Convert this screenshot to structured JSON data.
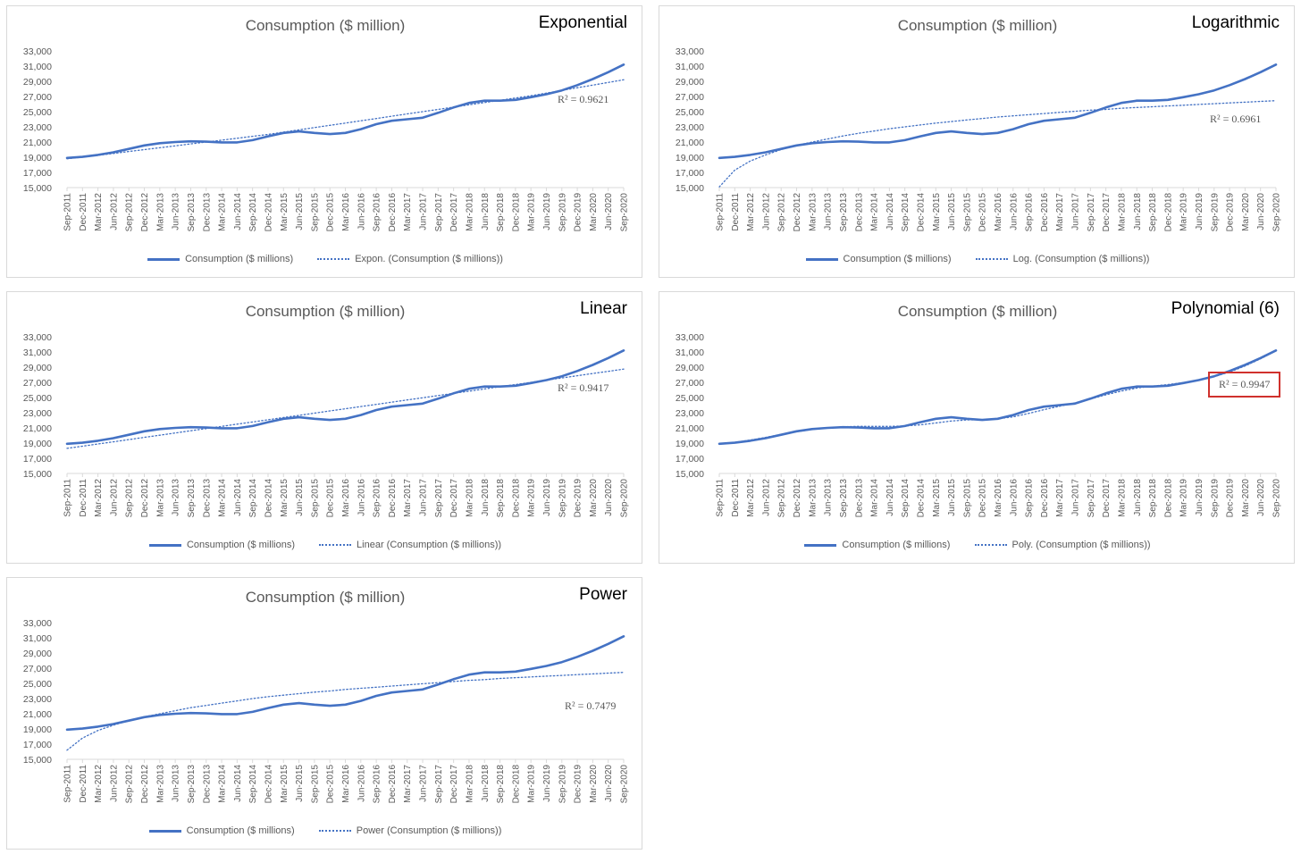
{
  "colors": {
    "series": "#4472c4",
    "text": "#595959",
    "grid": "#d9d9d9",
    "highlight": "#d0312d"
  },
  "chart_data": [
    {
      "type": "line",
      "title": "Consumption  ($ million)",
      "label": "Exponential",
      "r2": "R² = 0.9621",
      "legend": [
        "Consumption  ($ millions)",
        "Expon. (Consumption  ($ millions))"
      ],
      "ylim": [
        15000,
        33000
      ],
      "yticks": [
        "15,000",
        "17,000",
        "19,000",
        "21,000",
        "23,000",
        "25,000",
        "27,000",
        "29,000",
        "31,000",
        "33,000"
      ],
      "categories": [
        "Sep-2011",
        "Dec-2011",
        "Mar-2012",
        "Jun-2012",
        "Sep-2012",
        "Dec-2012",
        "Mar-2013",
        "Jun-2013",
        "Sep-2013",
        "Dec-2013",
        "Mar-2014",
        "Jun-2014",
        "Sep-2014",
        "Dec-2014",
        "Mar-2015",
        "Jun-2015",
        "Sep-2015",
        "Dec-2015",
        "Mar-2016",
        "Jun-2016",
        "Sep-2016",
        "Dec-2016",
        "Mar-2017",
        "Jun-2017",
        "Sep-2017",
        "Dec-2017",
        "Mar-2018",
        "Jun-2018",
        "Sep-2018",
        "Dec-2018",
        "Mar-2019",
        "Jun-2019",
        "Sep-2019",
        "Dec-2019",
        "Mar-2020",
        "Jun-2020",
        "Sep-2020"
      ],
      "series": [
        {
          "name": "Consumption  ($ millions)",
          "values": [
            18900,
            19050,
            19300,
            19650,
            20100,
            20550,
            20850,
            21000,
            21100,
            21050,
            20950,
            20950,
            21250,
            21750,
            22200,
            22400,
            22200,
            22050,
            22200,
            22700,
            23350,
            23800,
            24000,
            24200,
            24850,
            25550,
            26150,
            26450,
            26450,
            26550,
            26900,
            27300,
            27800,
            28500,
            29300,
            30200,
            31200
          ]
        },
        {
          "name": "Expon. (Consumption  ($ millions))",
          "style": "dotted",
          "values": [
            18800,
            19000,
            19250,
            19500,
            19750,
            20000,
            20250,
            20500,
            20750,
            21000,
            21250,
            21500,
            21750,
            22000,
            22300,
            22600,
            22900,
            23200,
            23500,
            23800,
            24100,
            24400,
            24700,
            25000,
            25300,
            25600,
            25900,
            26200,
            26500,
            26800,
            27100,
            27450,
            27800,
            28150,
            28500,
            28850,
            29200
          ]
        }
      ]
    },
    {
      "type": "line",
      "title": "Consumption  ($ million)",
      "label": "Logarithmic",
      "r2": "R² = 0.6961",
      "legend": [
        "Consumption  ($ millions)",
        "Log. (Consumption  ($ millions))"
      ],
      "ylim": [
        15000,
        33000
      ],
      "yticks": [
        "15,000",
        "17,000",
        "19,000",
        "21,000",
        "23,000",
        "25,000",
        "27,000",
        "29,000",
        "31,000",
        "33,000"
      ],
      "categories": [
        "Sep-2011",
        "Dec-2011",
        "Mar-2012",
        "Jun-2012",
        "Sep-2012",
        "Dec-2012",
        "Mar-2013",
        "Jun-2013",
        "Sep-2013",
        "Dec-2013",
        "Mar-2014",
        "Jun-2014",
        "Sep-2014",
        "Dec-2014",
        "Mar-2015",
        "Jun-2015",
        "Sep-2015",
        "Dec-2015",
        "Mar-2016",
        "Jun-2016",
        "Sep-2016",
        "Dec-2016",
        "Mar-2017",
        "Jun-2017",
        "Sep-2017",
        "Dec-2017",
        "Mar-2018",
        "Jun-2018",
        "Sep-2018",
        "Dec-2018",
        "Mar-2019",
        "Jun-2019",
        "Sep-2019",
        "Dec-2019",
        "Mar-2020",
        "Jun-2020",
        "Sep-2020"
      ],
      "series": [
        {
          "name": "Consumption  ($ millions)",
          "values": [
            18900,
            19050,
            19300,
            19650,
            20100,
            20550,
            20850,
            21000,
            21100,
            21050,
            20950,
            20950,
            21250,
            21750,
            22200,
            22400,
            22200,
            22050,
            22200,
            22700,
            23350,
            23800,
            24000,
            24200,
            24850,
            25550,
            26150,
            26450,
            26450,
            26550,
            26900,
            27300,
            27800,
            28500,
            29300,
            30200,
            31200
          ]
        },
        {
          "name": "Log. (Consumption  ($ millions))",
          "style": "dotted",
          "values": [
            15100,
            17300,
            18500,
            19300,
            20000,
            20550,
            21000,
            21400,
            21800,
            22150,
            22450,
            22750,
            23000,
            23250,
            23500,
            23700,
            23900,
            24100,
            24300,
            24450,
            24600,
            24750,
            24900,
            25050,
            25200,
            25300,
            25450,
            25550,
            25650,
            25750,
            25850,
            25950,
            26050,
            26150,
            26250,
            26350,
            26450
          ]
        }
      ]
    },
    {
      "type": "line",
      "title": "Consumption  ($ million)",
      "label": "Linear",
      "r2": "R² = 0.9417",
      "legend": [
        "Consumption  ($ millions)",
        "Linear (Consumption  ($ millions))"
      ],
      "ylim": [
        15000,
        33000
      ],
      "yticks": [
        "15,000",
        "17,000",
        "19,000",
        "21,000",
        "23,000",
        "25,000",
        "27,000",
        "29,000",
        "31,000",
        "33,000"
      ],
      "categories": [
        "Sep-2011",
        "Dec-2011",
        "Mar-2012",
        "Jun-2012",
        "Sep-2012",
        "Dec-2012",
        "Mar-2013",
        "Jun-2013",
        "Sep-2013",
        "Dec-2013",
        "Mar-2014",
        "Jun-2014",
        "Sep-2014",
        "Dec-2014",
        "Mar-2015",
        "Jun-2015",
        "Sep-2015",
        "Dec-2015",
        "Mar-2016",
        "Jun-2016",
        "Sep-2016",
        "Dec-2016",
        "Mar-2017",
        "Jun-2017",
        "Sep-2017",
        "Dec-2017",
        "Mar-2018",
        "Jun-2018",
        "Sep-2018",
        "Dec-2018",
        "Mar-2019",
        "Jun-2019",
        "Sep-2019",
        "Dec-2019",
        "Mar-2020",
        "Jun-2020",
        "Sep-2020"
      ],
      "series": [
        {
          "name": "Consumption  ($ millions)",
          "values": [
            18900,
            19050,
            19300,
            19650,
            20100,
            20550,
            20850,
            21000,
            21100,
            21050,
            20950,
            20950,
            21250,
            21750,
            22200,
            22400,
            22200,
            22050,
            22200,
            22700,
            23350,
            23800,
            24000,
            24200,
            24850,
            25550,
            26150,
            26450,
            26450,
            26550,
            26900,
            27300,
            27800,
            28500,
            29300,
            30200,
            31200
          ]
        },
        {
          "name": "Linear (Consumption  ($ millions))",
          "style": "dotted",
          "values": [
            18300,
            18590,
            18880,
            19170,
            19460,
            19750,
            20040,
            20330,
            20620,
            20910,
            21200,
            21490,
            21780,
            22070,
            22360,
            22650,
            22940,
            23230,
            23520,
            23810,
            24100,
            24390,
            24680,
            24970,
            25260,
            25550,
            25840,
            26130,
            26420,
            26710,
            27000,
            27290,
            27580,
            27870,
            28160,
            28450,
            28740
          ]
        }
      ]
    },
    {
      "type": "line",
      "title": "Consumption  ($ million)",
      "label": "Polynomial (6)",
      "r2": "R² = 0.9947",
      "legend": [
        "Consumption  ($ millions)",
        "Poly. (Consumption  ($ millions))"
      ],
      "ylim": [
        15000,
        33000
      ],
      "yticks": [
        "15,000",
        "17,000",
        "19,000",
        "21,000",
        "23,000",
        "25,000",
        "27,000",
        "29,000",
        "31,000",
        "33,000"
      ],
      "categories": [
        "Sep-2011",
        "Dec-2011",
        "Mar-2012",
        "Jun-2012",
        "Sep-2012",
        "Dec-2012",
        "Mar-2013",
        "Jun-2013",
        "Sep-2013",
        "Dec-2013",
        "Mar-2014",
        "Jun-2014",
        "Sep-2014",
        "Dec-2014",
        "Mar-2015",
        "Jun-2015",
        "Sep-2015",
        "Dec-2015",
        "Mar-2016",
        "Jun-2016",
        "Sep-2016",
        "Dec-2016",
        "Mar-2017",
        "Jun-2017",
        "Sep-2017",
        "Dec-2017",
        "Mar-2018",
        "Jun-2018",
        "Sep-2018",
        "Dec-2018",
        "Mar-2019",
        "Jun-2019",
        "Sep-2019",
        "Dec-2019",
        "Mar-2020",
        "Jun-2020",
        "Sep-2020"
      ],
      "series": [
        {
          "name": "Consumption  ($ millions)",
          "values": [
            18900,
            19050,
            19300,
            19650,
            20100,
            20550,
            20850,
            21000,
            21100,
            21050,
            20950,
            20950,
            21250,
            21750,
            22200,
            22400,
            22200,
            22050,
            22200,
            22700,
            23350,
            23800,
            24000,
            24200,
            24850,
            25550,
            26150,
            26450,
            26450,
            26550,
            26900,
            27300,
            27800,
            28500,
            29300,
            30200,
            31200
          ]
        },
        {
          "name": "Poly. (Consumption  ($ millions))",
          "style": "dotted",
          "values": [
            18900,
            19100,
            19400,
            19750,
            20150,
            20500,
            20800,
            21000,
            21150,
            21200,
            21200,
            21200,
            21250,
            21400,
            21650,
            21900,
            22050,
            22100,
            22200,
            22450,
            22900,
            23400,
            23850,
            24300,
            24800,
            25350,
            25850,
            26250,
            26500,
            26700,
            26950,
            27300,
            27750,
            28350,
            29150,
            30100,
            31150
          ]
        }
      ]
    },
    {
      "type": "line",
      "title": "Consumption  ($ million)",
      "label": "Power",
      "r2": "R² = 0.7479",
      "legend": [
        "Consumption  ($ millions)",
        "Power (Consumption  ($ millions))"
      ],
      "ylim": [
        15000,
        33000
      ],
      "yticks": [
        "15,000",
        "17,000",
        "19,000",
        "21,000",
        "23,000",
        "25,000",
        "27,000",
        "29,000",
        "31,000",
        "33,000"
      ],
      "categories": [
        "Sep-2011",
        "Dec-2011",
        "Mar-2012",
        "Jun-2012",
        "Sep-2012",
        "Dec-2012",
        "Mar-2013",
        "Jun-2013",
        "Sep-2013",
        "Dec-2013",
        "Mar-2014",
        "Jun-2014",
        "Sep-2014",
        "Dec-2014",
        "Mar-2015",
        "Jun-2015",
        "Sep-2015",
        "Dec-2015",
        "Mar-2016",
        "Jun-2016",
        "Sep-2016",
        "Dec-2016",
        "Mar-2017",
        "Jun-2017",
        "Sep-2017",
        "Dec-2017",
        "Mar-2018",
        "Jun-2018",
        "Sep-2018",
        "Dec-2018",
        "Mar-2019",
        "Jun-2019",
        "Sep-2019",
        "Dec-2019",
        "Mar-2020",
        "Jun-2020",
        "Sep-2020"
      ],
      "series": [
        {
          "name": "Consumption  ($ millions)",
          "values": [
            18900,
            19050,
            19300,
            19650,
            20100,
            20550,
            20850,
            21000,
            21100,
            21050,
            20950,
            20950,
            21250,
            21750,
            22200,
            22400,
            22200,
            22050,
            22200,
            22700,
            23350,
            23800,
            24000,
            24200,
            24850,
            25550,
            26150,
            26450,
            26450,
            26550,
            26900,
            27300,
            27800,
            28500,
            29300,
            30200,
            31200
          ]
        },
        {
          "name": "Power (Consumption  ($ millions))",
          "style": "dotted",
          "values": [
            16200,
            17800,
            18800,
            19500,
            20100,
            20600,
            21000,
            21400,
            21800,
            22100,
            22400,
            22700,
            23000,
            23250,
            23450,
            23650,
            23850,
            24000,
            24200,
            24350,
            24500,
            24650,
            24800,
            24950,
            25100,
            25250,
            25400,
            25500,
            25650,
            25750,
            25850,
            25950,
            26050,
            26150,
            26250,
            26350,
            26450
          ]
        }
      ]
    }
  ]
}
